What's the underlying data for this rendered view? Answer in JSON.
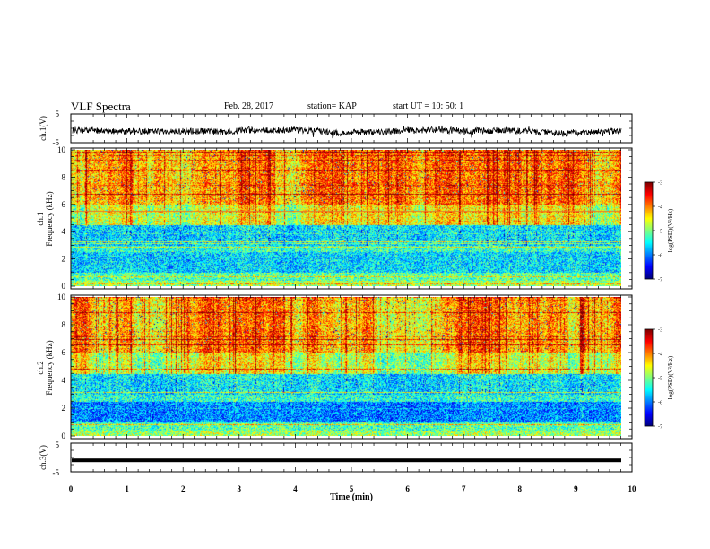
{
  "header": {
    "title": "VLF Spectra",
    "date": "Feb. 28, 2017",
    "station": "station= KAP",
    "start": "start  UT =   10: 50: 1"
  },
  "chart_data": [
    {
      "type": "line",
      "panel": "ch1-waveform",
      "ylabel": "ch.1(V)",
      "yticks": [
        "5",
        "-5"
      ],
      "ylim": [
        -5,
        5
      ],
      "description_series": "noisy voltage trace near -1 V, amplitude about 1–2 V"
    },
    {
      "type": "heatmap",
      "panel": "ch1-spectrogram",
      "ylabel_line1": "ch.1",
      "ylabel_line2": "Frequency (kHz)",
      "yticks": [
        "0",
        "2",
        "4",
        "6",
        "8",
        "10"
      ],
      "ylim": [
        0,
        10
      ],
      "xlim": [
        0,
        10
      ],
      "colorbar": {
        "label": "log(PSD)(V²/Hz)",
        "ticks": [
          "-3",
          "-4",
          "-5",
          "-6",
          "-7"
        ],
        "range": [
          -7,
          -3
        ]
      }
    },
    {
      "type": "heatmap",
      "panel": "ch2-spectrogram",
      "ylabel_line1": "ch.2",
      "ylabel_line2": "Frequency (kHz)",
      "yticks": [
        "0",
        "2",
        "4",
        "6",
        "8",
        "10"
      ],
      "ylim": [
        0,
        10
      ],
      "xlim": [
        0,
        10
      ],
      "colorbar": {
        "label": "log(PSD)(V²/Hz)",
        "ticks": [
          "-3",
          "-4",
          "-5",
          "-6",
          "-7"
        ],
        "range": [
          -7,
          -3
        ]
      }
    },
    {
      "type": "line",
      "panel": "ch3-waveform",
      "ylabel": "ch.3(V)",
      "yticks": [
        "5",
        "-5"
      ],
      "ylim": [
        -5,
        5
      ],
      "constant_value": -1
    }
  ],
  "x_axis": {
    "label": "Time (min)",
    "ticks": [
      "0",
      "1",
      "2",
      "3",
      "4",
      "5",
      "6",
      "7",
      "8",
      "9",
      "10"
    ],
    "xlim": [
      0,
      10
    ]
  },
  "colors": {
    "trace": "#000000",
    "jet_low": "#00007f",
    "jet_high": "#7f0000"
  }
}
